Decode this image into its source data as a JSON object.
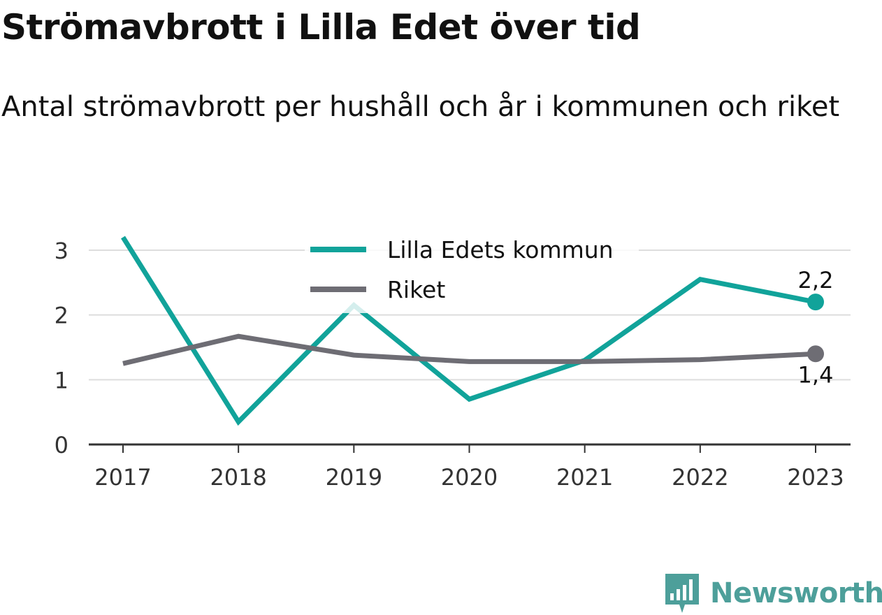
{
  "title": "Strömavbrott i Lilla Edet över tid",
  "subtitle": "Antal strömavbrott per hushåll och år i kommunen och riket",
  "brand": "Newsworthy",
  "colors": {
    "municipality": "#11a39a",
    "country": "#6e6d74",
    "grid": "#dddddd",
    "axis": "#333333",
    "brand": "#4d9f9a"
  },
  "chart_data": {
    "type": "line",
    "categories": [
      "2017",
      "2018",
      "2019",
      "2020",
      "2021",
      "2022",
      "2023"
    ],
    "series": [
      {
        "name": "Lilla Edets kommun",
        "color": "#11a39a",
        "values": [
          3.2,
          0.35,
          2.15,
          0.7,
          1.3,
          2.55,
          2.2
        ],
        "end_label": "2,2"
      },
      {
        "name": "Riket",
        "color": "#6e6d74",
        "values": [
          1.25,
          1.67,
          1.38,
          1.28,
          1.28,
          1.31,
          1.4
        ],
        "end_label": "1,4"
      }
    ],
    "y_ticks": [
      "0",
      "1",
      "2",
      "3"
    ],
    "ylim": [
      0,
      3
    ],
    "grid": true,
    "legend_position": "top-center",
    "xlabel": "",
    "ylabel": ""
  }
}
